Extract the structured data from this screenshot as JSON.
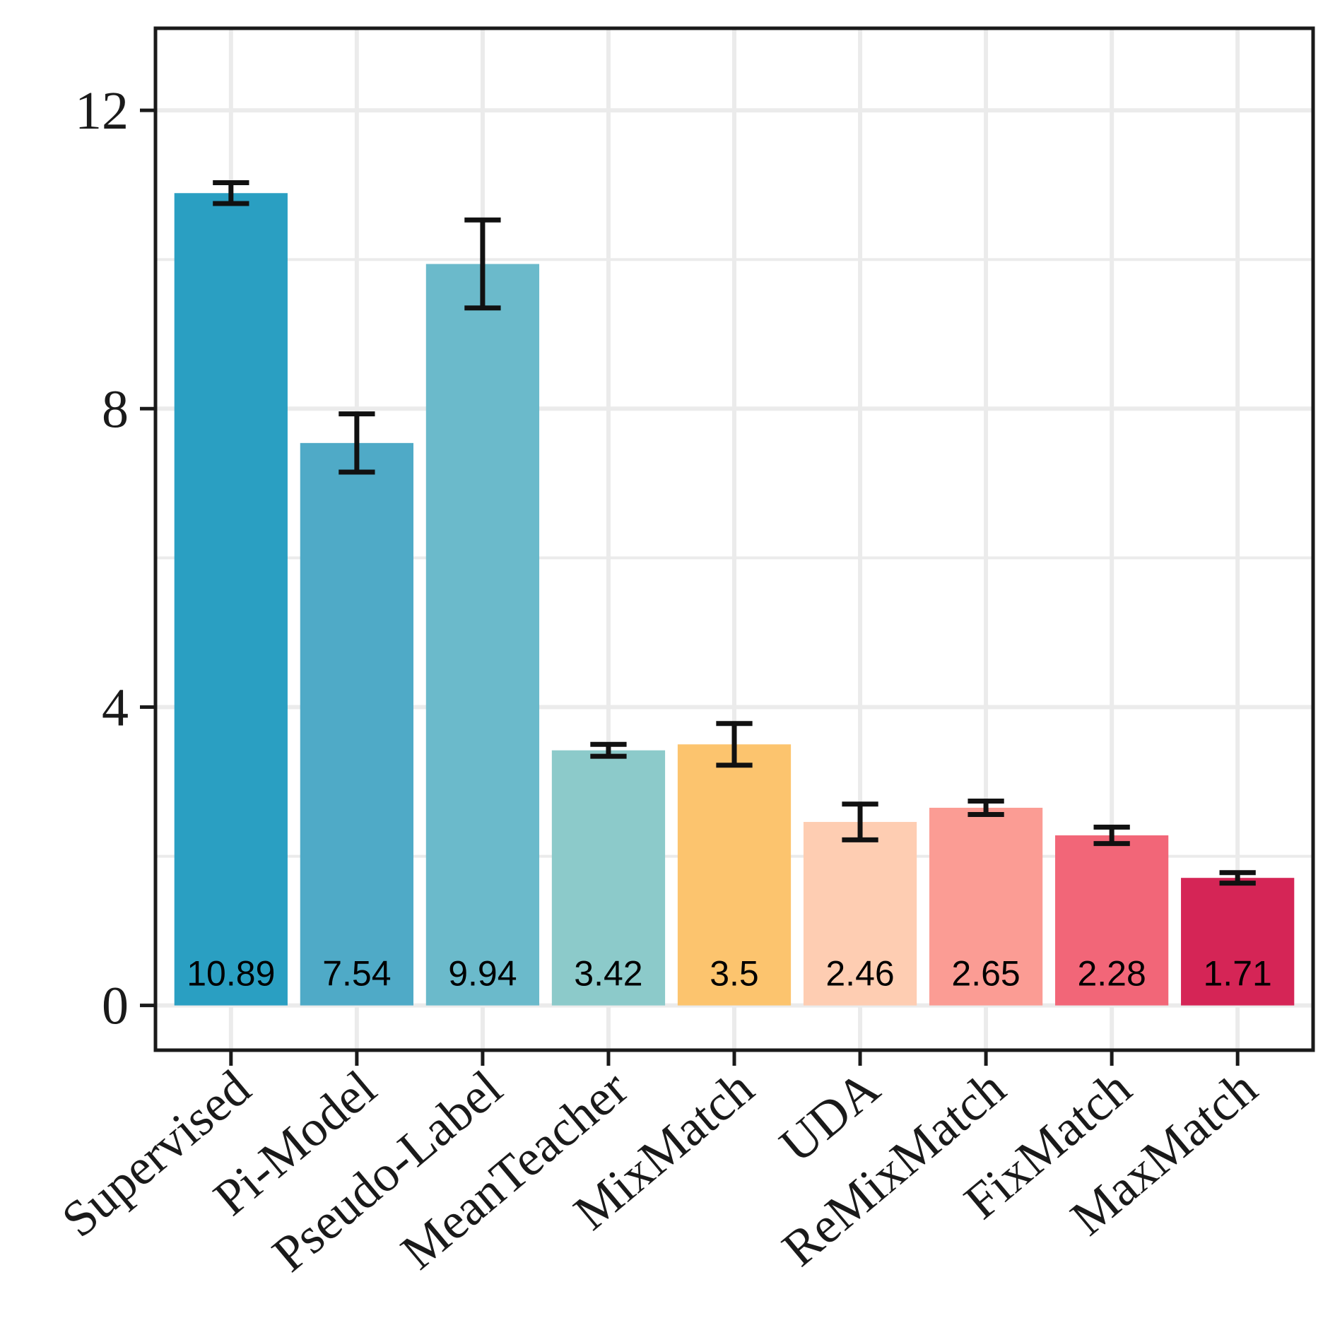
{
  "chart_data": {
    "type": "bar",
    "title": "",
    "xlabel": "",
    "ylabel": "",
    "ylim": [
      -0.6,
      13.1
    ],
    "yticks": [
      0,
      4,
      8,
      12
    ],
    "grid": true,
    "categories": [
      "Supervised",
      "Pi-Model",
      "Pseudo-Label",
      "MeanTeacher",
      "MixMatch",
      "UDA",
      "ReMixMatch",
      "FixMatch",
      "MaxMatch"
    ],
    "values": [
      10.89,
      7.54,
      9.94,
      3.42,
      3.5,
      2.46,
      2.65,
      2.28,
      1.71
    ],
    "value_labels": [
      "10.89",
      "7.54",
      "9.94",
      "3.42",
      "3.5",
      "2.46",
      "2.65",
      "2.28",
      "1.71"
    ],
    "error_low": [
      10.75,
      7.15,
      9.35,
      3.34,
      3.22,
      2.22,
      2.56,
      2.17,
      1.64
    ],
    "error_high": [
      11.03,
      7.93,
      10.53,
      3.5,
      3.78,
      2.7,
      2.74,
      2.39,
      1.78
    ],
    "colors": [
      "#2a9fc2",
      "#4faac7",
      "#6bbacb",
      "#8ccaca",
      "#fcc46e",
      "#fecdb2",
      "#fb9c94",
      "#f26678",
      "#d52556"
    ]
  }
}
